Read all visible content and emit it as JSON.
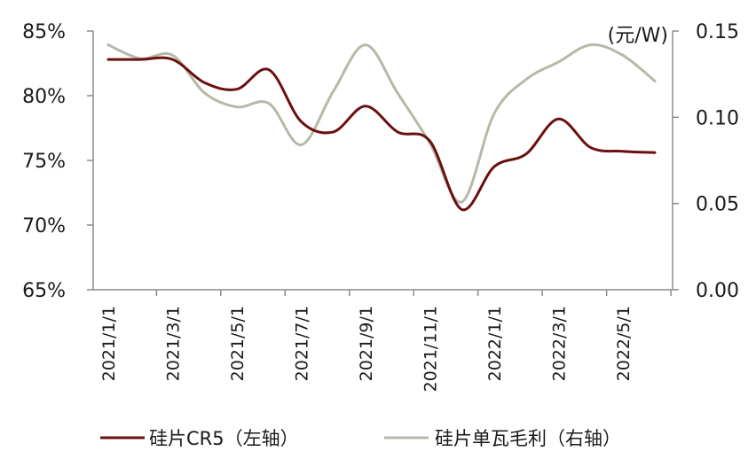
{
  "chart_data": {
    "type": "line",
    "x": [
      "2021/1/1",
      "2021/2/1",
      "2021/3/1",
      "2021/4/1",
      "2021/5/1",
      "2021/6/1",
      "2021/7/1",
      "2021/8/1",
      "2021/9/1",
      "2021/10/1",
      "2021/11/1",
      "2021/12/1",
      "2022/1/1",
      "2022/2/1",
      "2022/3/1",
      "2022/4/1",
      "2022/5/1",
      "2022/6/1"
    ],
    "x_tick_labels": [
      "2021/1/1",
      "2021/3/1",
      "2021/5/1",
      "2021/7/1",
      "2021/9/1",
      "2021/11/1",
      "2022/1/1",
      "2022/3/1",
      "2022/5/1"
    ],
    "left_axis": {
      "ylim": [
        65,
        85
      ],
      "ticks": [
        "65%",
        "70%",
        "75%",
        "80%",
        "85%"
      ],
      "tick_values": [
        65,
        70,
        75,
        80,
        85
      ]
    },
    "right_axis": {
      "unit": "(元/W)",
      "ylim": [
        0,
        0.15
      ],
      "ticks": [
        "0.00",
        "0.05",
        "0.10",
        "0.15"
      ],
      "tick_values": [
        0,
        0.05,
        0.1,
        0.15
      ]
    },
    "series": [
      {
        "name": "硅片CR5（左轴）",
        "axis": "left",
        "color": "#6b0f10",
        "values": [
          82.8,
          82.8,
          82.8,
          81.0,
          80.5,
          82.0,
          78.0,
          77.2,
          79.2,
          77.2,
          76.5,
          71.2,
          74.5,
          75.5,
          78.2,
          76.0,
          75.7,
          75.6
        ]
      },
      {
        "name": "硅片单瓦毛利（右轴）",
        "axis": "right",
        "color": "#b8b8a8",
        "values": [
          0.142,
          0.134,
          0.136,
          0.114,
          0.106,
          0.108,
          0.084,
          0.115,
          0.142,
          0.114,
          0.085,
          0.051,
          0.102,
          0.122,
          0.132,
          0.142,
          0.136,
          0.121
        ]
      }
    ]
  }
}
